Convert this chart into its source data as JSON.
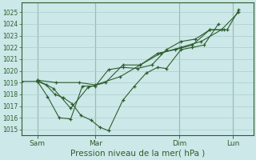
{
  "title": "Pression niveau de la mer( hPa )",
  "bg_color": "#cce8e8",
  "grid_color": "#aacece",
  "line_color": "#2d5e2d",
  "marker_color": "#2d5e2d",
  "ylim": [
    1014.5,
    1025.8
  ],
  "yticks": [
    1015,
    1016,
    1017,
    1018,
    1019,
    1020,
    1021,
    1022,
    1023,
    1024,
    1025
  ],
  "xlim": [
    0,
    8.0
  ],
  "xtick_labels": [
    "Sam",
    "Mar",
    "Dim",
    "Lun"
  ],
  "xtick_positions": [
    0.55,
    2.55,
    5.45,
    7.3
  ],
  "vlines": [
    0.55,
    2.55,
    5.45,
    7.3
  ],
  "series": [
    {
      "x": [
        0.0,
        0.55,
        0.85,
        1.15,
        1.45,
        1.75,
        2.05,
        2.4,
        2.7,
        3.0,
        3.5,
        3.9,
        4.3,
        4.7,
        5.0,
        5.5,
        5.9,
        6.3,
        6.8
      ],
      "y": [
        1019.1,
        1019.1,
        1018.8,
        1018.0,
        1017.7,
        1017.2,
        1016.2,
        1015.8,
        1015.2,
        1014.9,
        1017.5,
        1018.7,
        1019.8,
        1020.3,
        1020.2,
        1021.8,
        1022.0,
        1022.2,
        1024.0
      ]
    },
    {
      "x": [
        0.55,
        0.9,
        1.3,
        1.7,
        2.1,
        2.55,
        3.0,
        3.5,
        4.0,
        4.5,
        5.0,
        5.5,
        6.0,
        6.5,
        7.0
      ],
      "y": [
        1019.1,
        1017.8,
        1016.0,
        1015.9,
        1018.7,
        1018.7,
        1020.1,
        1020.3,
        1020.2,
        1020.5,
        1021.8,
        1022.5,
        1022.7,
        1023.5,
        1023.5
      ]
    },
    {
      "x": [
        0.55,
        1.1,
        1.7,
        2.3,
        2.9,
        3.5,
        4.1,
        4.7,
        5.3,
        5.9,
        6.5,
        7.1,
        7.5
      ],
      "y": [
        1019.2,
        1018.5,
        1016.8,
        1018.6,
        1019.0,
        1020.5,
        1020.5,
        1021.5,
        1021.8,
        1022.2,
        1023.5,
        1023.5,
        1025.2
      ]
    },
    {
      "x": [
        0.55,
        1.2,
        2.0,
        2.55,
        3.4,
        4.1,
        4.8,
        5.5,
        6.2,
        6.9,
        7.5
      ],
      "y": [
        1019.2,
        1019.0,
        1019.0,
        1018.8,
        1019.5,
        1020.5,
        1021.5,
        1022.0,
        1022.5,
        1023.5,
        1025.0
      ]
    }
  ],
  "ytick_fontsize": 5.5,
  "xtick_fontsize": 6.5,
  "xlabel_fontsize": 7.5,
  "spine_color": "#2d5e2d",
  "tick_color": "#2d5e2d",
  "label_color": "#2d5e2d"
}
